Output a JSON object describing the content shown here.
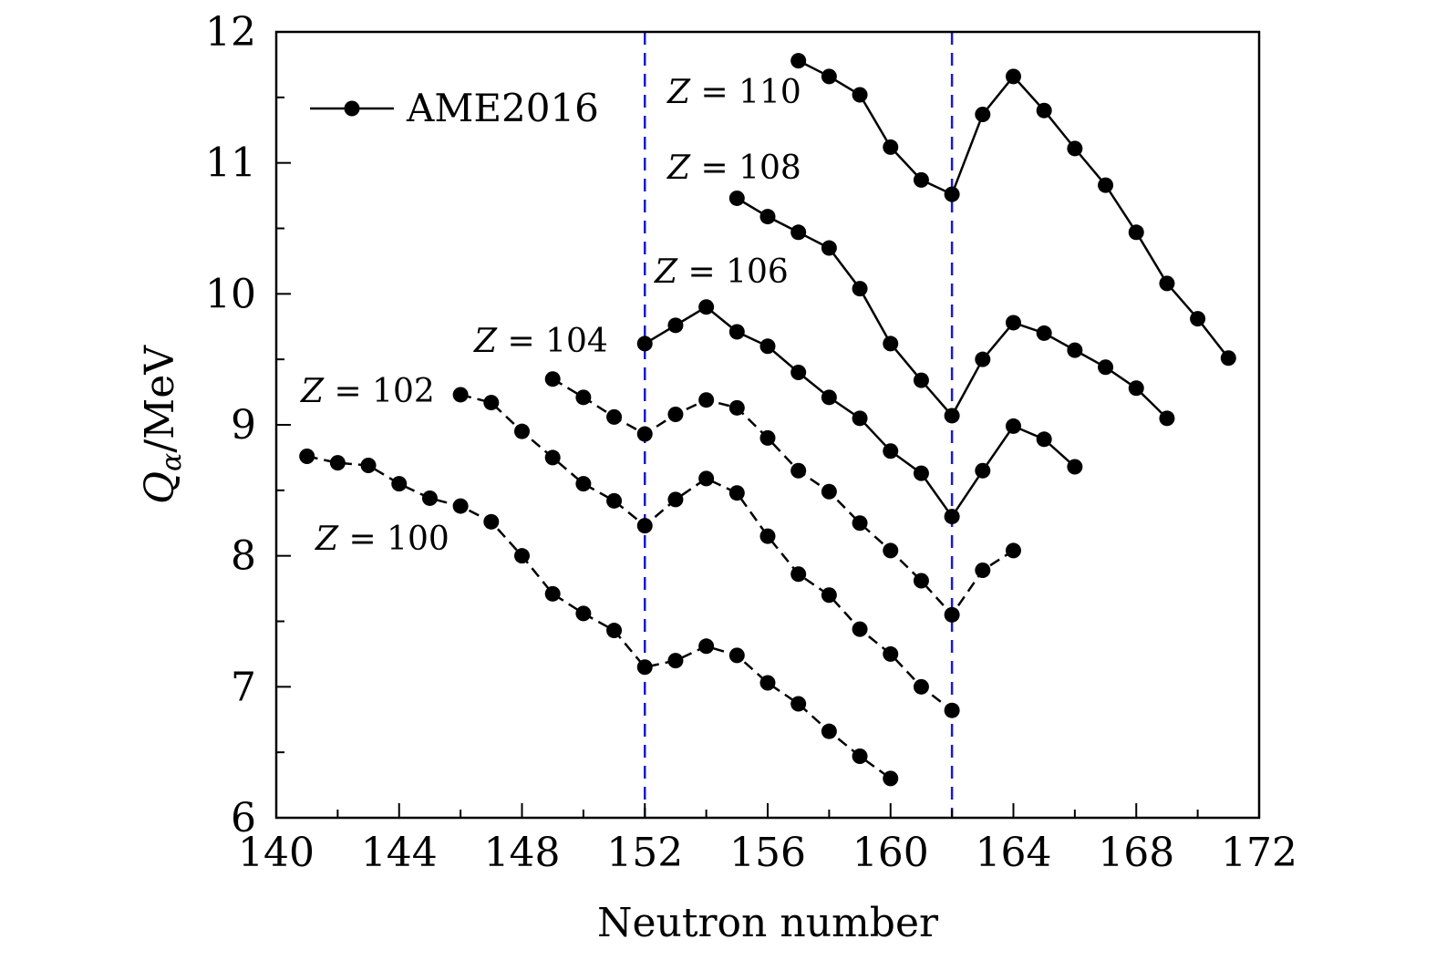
{
  "chart_data": {
    "type": "line",
    "xlabel": "Neutron number",
    "ylabel_main": "Q",
    "ylabel_sub": "α",
    "ylabel_unit": "/MeV",
    "xlim": [
      140,
      172
    ],
    "ylim": [
      6,
      12
    ],
    "x_ticks": [
      140,
      144,
      148,
      152,
      156,
      160,
      164,
      168,
      172
    ],
    "y_ticks": [
      6,
      7,
      8,
      9,
      10,
      11,
      12
    ],
    "x_minor_step": 2,
    "y_minor_step": 0.5,
    "grid": false,
    "legend": {
      "position": "top-left",
      "label": "AME2016"
    },
    "reference_lines": [
      {
        "x": 152,
        "style": "dashed",
        "color": "#1a1acc"
      },
      {
        "x": 162,
        "style": "dashed",
        "color": "#1a1acc"
      }
    ],
    "series": [
      {
        "label": "Z = 100",
        "x": [
          141,
          142,
          143,
          144,
          145,
          146,
          147,
          148,
          149,
          150,
          151,
          152,
          153,
          154,
          155,
          156,
          157,
          158,
          159,
          160
        ],
        "y": [
          8.76,
          8.71,
          8.69,
          8.55,
          8.44,
          8.38,
          8.26,
          8.0,
          7.71,
          7.56,
          7.43,
          7.15,
          7.2,
          7.31,
          7.24,
          7.03,
          6.87,
          6.66,
          6.47,
          6.3
        ]
      },
      {
        "label": "Z = 102",
        "x": [
          146,
          147,
          148,
          149,
          150,
          151,
          152,
          153,
          154,
          155,
          156,
          157,
          158,
          159,
          160,
          161,
          162
        ],
        "y": [
          9.23,
          9.17,
          8.95,
          8.75,
          8.55,
          8.42,
          8.23,
          8.43,
          8.59,
          8.48,
          8.15,
          7.86,
          7.7,
          7.44,
          7.25,
          7.0,
          6.82
        ]
      },
      {
        "label": "Z = 104",
        "x": [
          149,
          150,
          151,
          152,
          153,
          154,
          155,
          156,
          157,
          158,
          159,
          160,
          161,
          162,
          163,
          164
        ],
        "y": [
          9.35,
          9.21,
          9.06,
          8.93,
          9.08,
          9.19,
          9.13,
          8.9,
          8.65,
          8.49,
          8.25,
          8.04,
          7.81,
          7.55,
          7.89,
          8.04
        ]
      },
      {
        "label": "Z = 106",
        "x": [
          152,
          153,
          154,
          155,
          156,
          157,
          158,
          159,
          160,
          161,
          162,
          163,
          164,
          165,
          166
        ],
        "y": [
          9.62,
          9.76,
          9.9,
          9.71,
          9.6,
          9.4,
          9.21,
          9.05,
          8.8,
          8.63,
          8.3,
          8.65,
          8.99,
          8.89,
          8.68
        ]
      },
      {
        "label": "Z = 108",
        "x": [
          155,
          156,
          157,
          158,
          159,
          160,
          161,
          162,
          163,
          164,
          165,
          166,
          167,
          168,
          169
        ],
        "y": [
          10.73,
          10.59,
          10.47,
          10.35,
          10.04,
          9.62,
          9.34,
          9.07,
          9.5,
          9.78,
          9.7,
          9.57,
          9.44,
          9.28,
          9.05
        ]
      },
      {
        "label": "Z = 110",
        "x": [
          157,
          158,
          159,
          160,
          161,
          162,
          163,
          164,
          165,
          166,
          167,
          168,
          169,
          170,
          171
        ],
        "y": [
          11.78,
          11.66,
          11.52,
          11.12,
          10.87,
          10.76,
          11.37,
          11.66,
          11.4,
          11.11,
          10.83,
          10.47,
          10.08,
          9.81,
          9.51
        ]
      }
    ]
  }
}
